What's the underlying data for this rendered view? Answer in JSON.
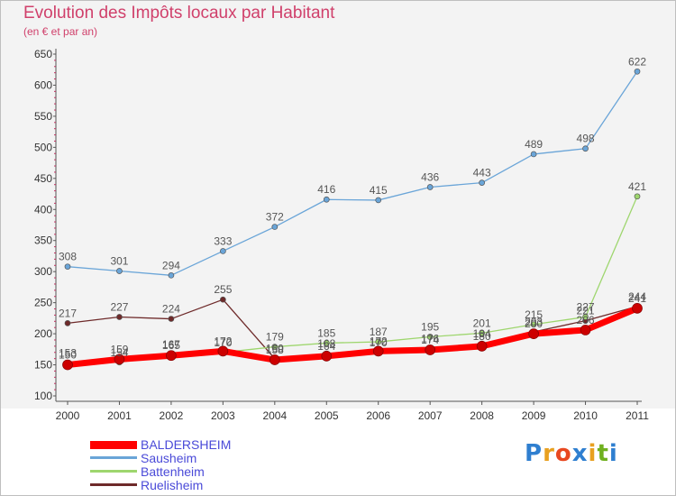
{
  "title": "Evolution des Impôts locaux par Habitant",
  "subtitle": "(en € et par an)",
  "logo": {
    "text": "Proxiti",
    "letter_colors": [
      "#2f7fd0",
      "#e8a020",
      "#e84820",
      "#2f7fd0",
      "#e8a020",
      "#70b020",
      "#2f7fd0"
    ]
  },
  "chart_data": {
    "type": "line",
    "x": [
      "2000",
      "2001",
      "2002",
      "2003",
      "2004",
      "2005",
      "2006",
      "2007",
      "2008",
      "2009",
      "2010",
      "2011"
    ],
    "y_ticks": [
      "100",
      "150",
      "200",
      "250",
      "300",
      "350",
      "400",
      "450",
      "500",
      "550",
      "600",
      "650"
    ],
    "ylim": [
      100,
      650
    ],
    "grid": false,
    "legend_position": "bottom-left",
    "series": [
      {
        "name": "BALDERSHEIM",
        "color": "#ff0000",
        "values": [
          150,
          159,
          165,
          172,
          158,
          164,
          172,
          174,
          180,
          200,
          206,
          241
        ],
        "labels": [
          "150",
          "159",
          "165",
          "172",
          "158",
          "164",
          "172",
          "174",
          "180",
          "200",
          "206",
          "241"
        ]
      },
      {
        "name": "Sausheim",
        "color": "#6aa5d8",
        "values": [
          308,
          301,
          294,
          333,
          372,
          416,
          415,
          436,
          443,
          489,
          498,
          622
        ],
        "labels": [
          "308",
          "301",
          "294",
          "333",
          "372",
          "416",
          "415",
          "436",
          "443",
          "489",
          "498",
          "622"
        ]
      },
      {
        "name": "Battenheim",
        "color": "#9ed66e",
        "values": [
          153,
          154,
          167,
          170,
          179,
          185,
          187,
          195,
          201,
          215,
          227,
          421
        ],
        "labels": [
          "153",
          "154",
          "167",
          "170",
          "179",
          "185",
          "187",
          "195",
          "201",
          "215",
          "227",
          "421"
        ]
      },
      {
        "name": "Ruelisheim",
        "color": "#6e2a2a",
        "values": [
          217,
          227,
          224,
          255,
          160,
          168,
          170,
          176,
          184,
          203,
          221,
          244
        ],
        "labels": [
          "217",
          "227",
          "224",
          "255",
          "160",
          "168",
          "170",
          "176",
          "184",
          "203",
          "221",
          "244"
        ]
      }
    ]
  }
}
